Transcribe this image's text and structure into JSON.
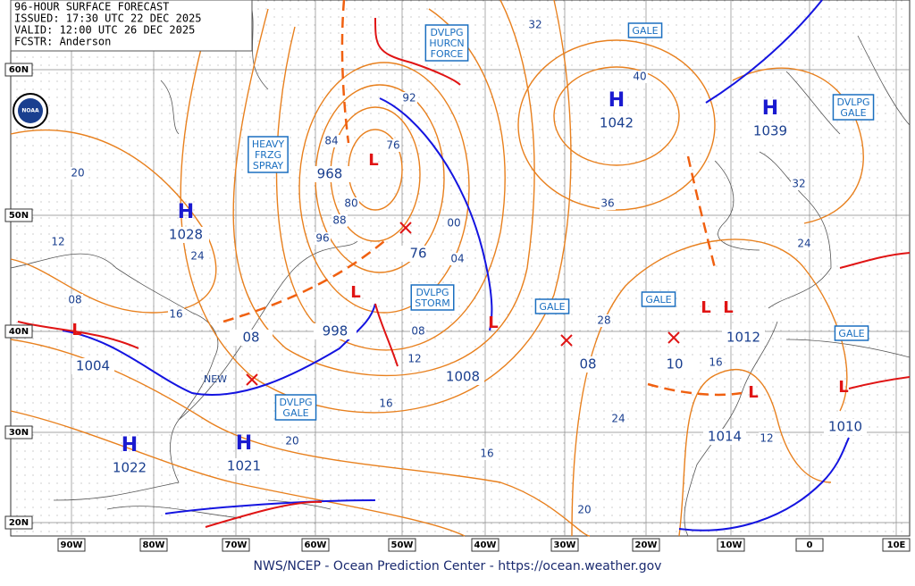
{
  "header": {
    "title": "96-HOUR SURFACE FORECAST",
    "issued": "ISSUED: 17:30 UTC 22 DEC 2025",
    "valid": "VALID: 12:00 UTC 26 DEC 2025",
    "forecaster": "FCSTR: Anderson"
  },
  "logo": "NOAA",
  "latitude_labels": [
    "60N",
    "50N",
    "40N",
    "30N",
    "20N"
  ],
  "longitude_labels": [
    "90W",
    "80W",
    "70W",
    "60W",
    "50W",
    "40W",
    "30W",
    "20W",
    "10W",
    "0",
    "10E"
  ],
  "high_centers": [
    {
      "symbol": "H",
      "value": "1028"
    },
    {
      "symbol": "H",
      "value": "1022"
    },
    {
      "symbol": "H",
      "value": "1021"
    },
    {
      "symbol": "H",
      "value": "1042"
    },
    {
      "symbol": "H",
      "value": "1039"
    }
  ],
  "low_symbol": "L",
  "center_values": [
    "968",
    "76",
    "998",
    "08",
    "1004",
    "1008",
    "08",
    "10",
    "1012",
    "1014",
    "1010",
    "NEW"
  ],
  "warnings": [
    [
      "DVLPG",
      "HURCN",
      "FORCE"
    ],
    [
      "GALE"
    ],
    [
      "DVLPG",
      "GALE"
    ],
    [
      "HEAVY",
      "FRZG",
      "SPRAY"
    ],
    [
      "DVLPG",
      "STORM"
    ],
    [
      "GALE"
    ],
    [
      "GALE"
    ],
    [
      "GALE"
    ],
    [
      "DVLPG",
      "GALE"
    ]
  ],
  "isobar_labels": [
    "92",
    "84",
    "76",
    "80",
    "88",
    "96",
    "00",
    "04",
    "08",
    "12",
    "16",
    "20",
    "16",
    "20",
    "24",
    "28",
    "36",
    "40",
    "32",
    "32",
    "24",
    "16",
    "12",
    "20",
    "12",
    "24",
    "08",
    "16"
  ],
  "footer": "NWS/NCEP - Ocean Prediction Center - https://ocean.weather.gov"
}
